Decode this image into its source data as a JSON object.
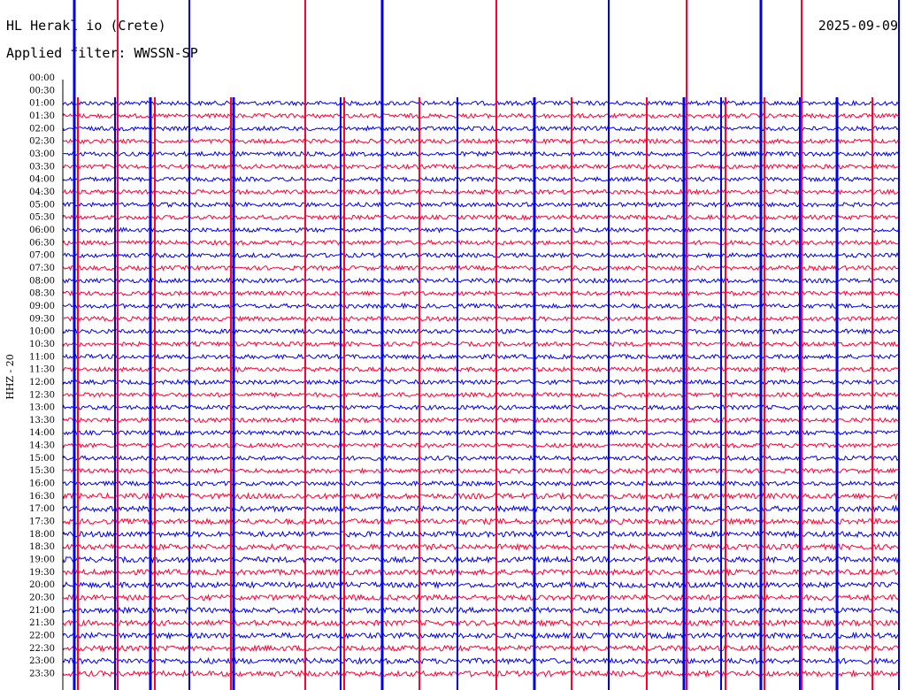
{
  "header": {
    "station": "HL Herakl io (Crete)",
    "filter": "Applied filter: WWSSN-SP",
    "date": "2025-09-09"
  },
  "chart_data": {
    "type": "line",
    "title": "HL Herakl io (Crete)",
    "subtitle": "Applied filter: WWSSN-SP",
    "ylabel": "HHZ - 20",
    "y_tick_labels": [
      "00:00",
      "00:30",
      "01:00",
      "01:30",
      "02:00",
      "02:30",
      "03:00",
      "03:30",
      "04:00",
      "04:30",
      "05:00",
      "05:30",
      "06:00",
      "06:30",
      "07:00",
      "07:30",
      "08:00",
      "08:30",
      "09:00",
      "09:30",
      "10:00",
      "10:30",
      "11:00",
      "11:30",
      "12:00",
      "12:30",
      "13:00",
      "13:30",
      "14:00",
      "14:30",
      "15:00",
      "15:30",
      "16:00",
      "16:30",
      "17:00",
      "17:30",
      "18:00",
      "18:30",
      "19:00",
      "19:30",
      "20:00",
      "20:30",
      "21:00",
      "21:30",
      "22:00",
      "22:30",
      "23:00",
      "23:30"
    ],
    "traces_start": "01:00",
    "trace_colors": [
      "#0000ee",
      "#ff0033"
    ],
    "line_ticks_in_traces": false,
    "events": [
      {
        "x_min": 13.5,
        "start_trace": 0,
        "amp": "full"
      },
      {
        "x_min": 14.5,
        "start_trace": 0,
        "amp": "full"
      },
      {
        "x_min": 15.5,
        "start_trace": 0,
        "amp": "full"
      },
      {
        "x_min": 57,
        "start_trace": 0,
        "amp": "full"
      },
      {
        "x_min": 62,
        "start_trace": 0,
        "amp": "full"
      },
      {
        "x_min": 140,
        "start_trace": 0,
        "amp": "full"
      },
      {
        "x_min": 146,
        "start_trace": 0,
        "amp": "full"
      },
      {
        "x_min": 150,
        "start_trace": 0,
        "amp": "full"
      },
      {
        "x_min": 185,
        "start_trace": 0,
        "amp": "full"
      },
      {
        "x_min": 188,
        "start_trace": 0,
        "amp": "full"
      },
      {
        "x_min": 241,
        "start_trace": 0,
        "amp": "full"
      },
      {
        "x_min": 276,
        "start_trace": 0,
        "amp": "full"
      },
      {
        "x_min": 316,
        "start_trace": 0,
        "amp": "full"
      },
      {
        "x_min": 360,
        "start_trace": 0,
        "amp": "full"
      },
      {
        "x_min": 403,
        "start_trace": 0,
        "amp": "full"
      },
      {
        "x_min": 446,
        "start_trace": 0,
        "amp": "full"
      },
      {
        "x_min": 490,
        "start_trace": 0,
        "amp": "full"
      },
      {
        "x_min": 527,
        "start_trace": 0,
        "amp": "full"
      },
      {
        "x_min": 572,
        "start_trace": 0,
        "amp": "full"
      },
      {
        "x_min": 576,
        "start_trace": 0,
        "amp": "full"
      },
      {
        "x_min": 620,
        "start_trace": 0,
        "amp": "full"
      },
      {
        "x_min": 664,
        "start_trace": 0,
        "amp": "full"
      },
      {
        "x_min": 704,
        "start_trace": 0,
        "amp": "full"
      },
      {
        "x_min": 736,
        "start_trace": 0,
        "amp": "full"
      },
      {
        "x_min": 775,
        "start_trace": 0,
        "amp": "full"
      },
      {
        "x_min": 780,
        "start_trace": 0,
        "amp": "full"
      },
      {
        "x_min": 830,
        "start_trace": 0,
        "amp": "full"
      },
      {
        "x_min": 835,
        "start_trace": 0,
        "amp": "full"
      },
      {
        "x_min": 876,
        "start_trace": 0,
        "amp": "full"
      },
      {
        "x_min": 880,
        "start_trace": 0,
        "amp": "full"
      },
      {
        "x_min": 916,
        "start_trace": 0,
        "amp": "full"
      }
    ],
    "x_range_min": [
      0,
      30
    ],
    "grid": false,
    "legend": "none"
  }
}
